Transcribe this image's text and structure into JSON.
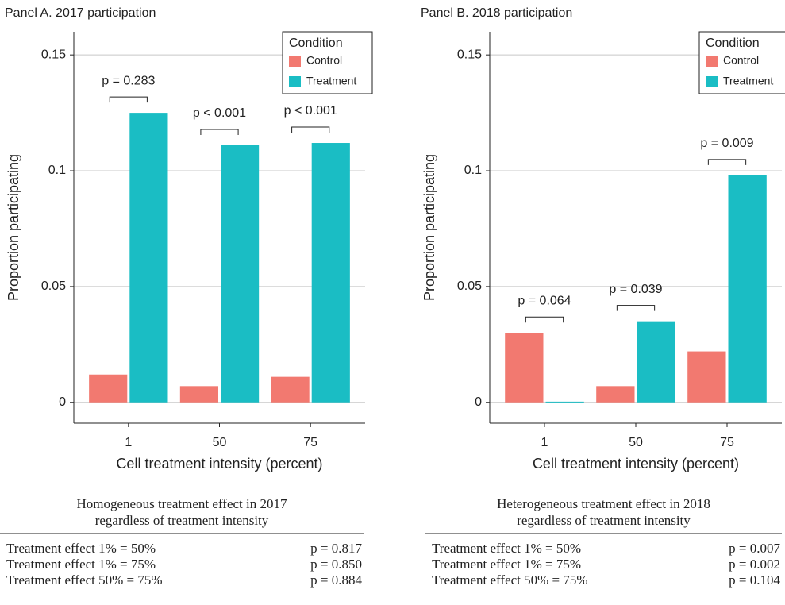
{
  "chart_data": [
    {
      "type": "bar",
      "title": "Panel A. 2017 participation",
      "x_label": "Cell treatment intensity (percent)",
      "y_label": "Proportion participating",
      "legend_title": "Condition",
      "legend": "top-right",
      "grid": true,
      "categories": [
        "1",
        "50",
        "75"
      ],
      "series": [
        {
          "name": "Control",
          "color": "#f27970",
          "values": [
            0.012,
            0.007,
            0.011
          ]
        },
        {
          "name": "Treatment",
          "color": "#1abdc4",
          "values": [
            0.125,
            0.111,
            0.112
          ]
        }
      ],
      "annotations": [
        "p = 0.283",
        "p < 0.001",
        "p < 0.001"
      ],
      "ylim": [
        -0.009,
        0.16
      ],
      "yticks": [
        0,
        0.05,
        0.1,
        0.15
      ]
    },
    {
      "type": "bar",
      "title": "Panel B. 2018 participation",
      "x_label": "Cell treatment intensity (percent)",
      "y_label": "Proportion participating",
      "legend_title": "Condition",
      "legend": "top-right",
      "grid": true,
      "categories": [
        "1",
        "50",
        "75"
      ],
      "series": [
        {
          "name": "Control",
          "color": "#f27970",
          "values": [
            0.03,
            0.007,
            0.022
          ]
        },
        {
          "name": "Treatment",
          "color": "#1abdc4",
          "values": [
            0.0003,
            0.035,
            0.098
          ]
        }
      ],
      "annotations": [
        "p = 0.064",
        "p = 0.039",
        "p = 0.009"
      ],
      "ylim": [
        -0.009,
        0.16
      ],
      "yticks": [
        0,
        0.05,
        0.1,
        0.15
      ]
    }
  ],
  "tables": [
    {
      "caption": [
        "Homogeneous treatment effect in 2017",
        "regardless of treatment intensity"
      ],
      "rows": [
        [
          "Treatment effect 1% = 50%",
          "p = 0.817"
        ],
        [
          "Treatment effect 1% = 75%",
          "p = 0.850"
        ],
        [
          "Treatment effect 50% = 75%",
          "p = 0.884"
        ]
      ]
    },
    {
      "caption": [
        "Heterogeneous treatment effect in 2018",
        "regardless of treatment intensity"
      ],
      "rows": [
        [
          "Treatment effect 1% = 50%",
          "p = 0.007"
        ],
        [
          "Treatment effect 1% = 75%",
          "p = 0.002"
        ],
        [
          "Treatment effect 50% = 75%",
          "p = 0.104"
        ]
      ]
    }
  ]
}
